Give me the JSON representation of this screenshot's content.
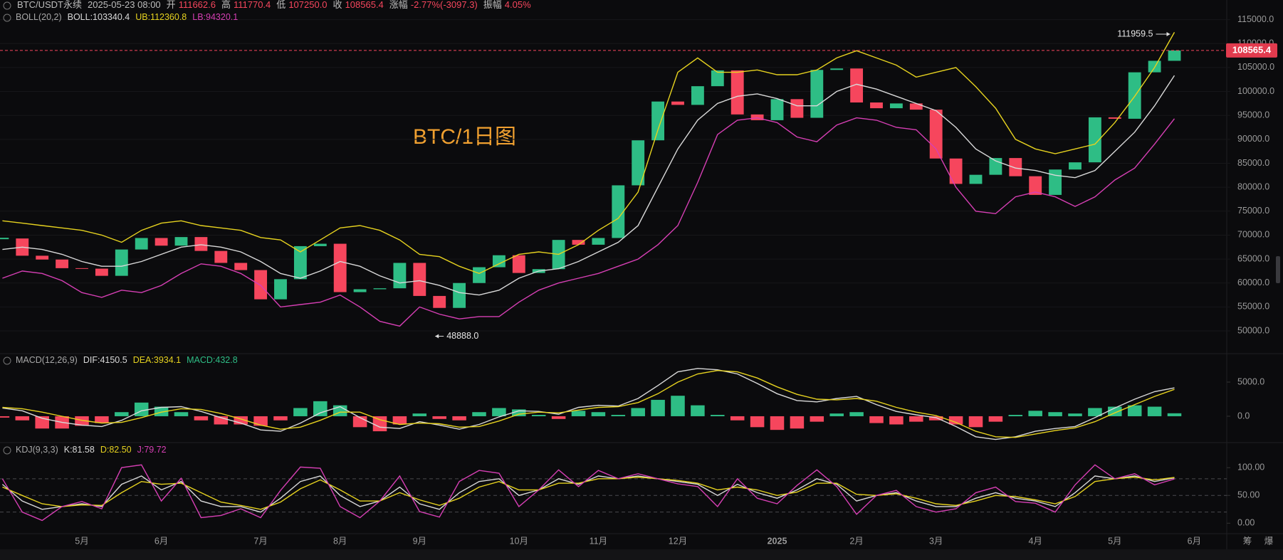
{
  "header": {
    "symbol": "BTC/USDT永续",
    "time": "2025-05-23 08:00",
    "value_color": "#f6465d",
    "fields": [
      {
        "label": "开",
        "value": "111662.6"
      },
      {
        "label": "高",
        "value": "111770.4"
      },
      {
        "label": "低",
        "value": "107250.0"
      },
      {
        "label": "收",
        "value": "108565.4"
      },
      {
        "label": "涨幅",
        "value": "-2.77%(-3097.3)"
      },
      {
        "label": "振幅",
        "value": "4.05%"
      }
    ]
  },
  "annotation": "BTC/1日图",
  "side_labels": [
    "筹",
    "爆"
  ],
  "chart_data": [
    {
      "type": "candlestick",
      "title": "BOLL(20,2)",
      "up_color": "#2ebd85",
      "down_color": "#f6465d",
      "grid": true,
      "categories": [
        null,
        null,
        null,
        null,
        "5月",
        null,
        null,
        null,
        "6月",
        null,
        null,
        null,
        null,
        "7月",
        null,
        null,
        null,
        "8月",
        null,
        null,
        null,
        "9月",
        null,
        null,
        null,
        null,
        "10月",
        null,
        null,
        null,
        "11月",
        null,
        null,
        null,
        "12月",
        null,
        null,
        null,
        null,
        "2025",
        null,
        null,
        null,
        "2月",
        null,
        null,
        null,
        "3月",
        null,
        null,
        null,
        null,
        "4月",
        null,
        null,
        null,
        "5月",
        null,
        null,
        null,
        "6月"
      ],
      "values": [
        69300,
        65700,
        64900,
        63100,
        63000,
        61500,
        67000,
        69400,
        67800,
        69600,
        66700,
        64200,
        62700,
        56600,
        60800,
        67700,
        68200,
        58100,
        58700,
        58900,
        64200,
        57300,
        54800,
        60000,
        63300,
        65800,
        62100,
        62900,
        69000,
        68000,
        69400,
        80400,
        89800,
        97900,
        97200,
        101100,
        104400,
        95200,
        94000,
        98400,
        94500,
        104500,
        104800,
        97700,
        96500,
        97500,
        96200,
        86000,
        80700,
        82600,
        86100,
        82300,
        78400,
        83700,
        85200,
        94600,
        94300,
        104000,
        106400,
        108565.4,
        null
      ],
      "max_marker": 111959.5,
      "min_marker": {
        "value": 48888,
        "label": "48888.0"
      },
      "series": [
        {
          "name": "BOLL:103340.4",
          "color": "#d9d9d9",
          "values": [
            67000,
            67500,
            67000,
            66000,
            64500,
            63500,
            63500,
            64500,
            66000,
            67500,
            68000,
            67500,
            66500,
            64500,
            62000,
            61000,
            62500,
            64500,
            63500,
            61500,
            60000,
            60500,
            59500,
            58000,
            57500,
            58500,
            61000,
            62500,
            63000,
            64500,
            66500,
            68500,
            72000,
            80000,
            88000,
            94000,
            97500,
            99000,
            99500,
            98500,
            97000,
            97000,
            100000,
            101500,
            100500,
            99000,
            97500,
            96000,
            92500,
            88000,
            85500,
            84000,
            83500,
            82500,
            82000,
            83500,
            87500,
            91500,
            97000,
            103340.4,
            null
          ]
        },
        {
          "name": "UB:112360.8",
          "color": "#e6d21f",
          "values": [
            73000,
            72500,
            72000,
            71500,
            71000,
            70000,
            68500,
            71000,
            72500,
            73000,
            72000,
            71500,
            71000,
            69500,
            69000,
            66500,
            69000,
            71500,
            72000,
            71000,
            69000,
            66000,
            65500,
            63500,
            62000,
            64000,
            66000,
            66500,
            66000,
            68000,
            71000,
            73500,
            79000,
            92000,
            104000,
            107000,
            104000,
            104000,
            104500,
            103500,
            103500,
            104500,
            107000,
            108500,
            107000,
            105500,
            103000,
            104000,
            105000,
            101000,
            96500,
            90000,
            88000,
            87000,
            88000,
            89000,
            93500,
            99000,
            105000,
            112360.8,
            null
          ]
        },
        {
          "name": "LB:94320.1",
          "color": "#d63fb4",
          "values": [
            61000,
            62500,
            62000,
            60500,
            58000,
            57000,
            58500,
            58000,
            59500,
            62000,
            64000,
            63500,
            62000,
            59500,
            55000,
            55500,
            56000,
            57500,
            55000,
            52000,
            51000,
            55000,
            53500,
            52500,
            53000,
            53000,
            56000,
            58500,
            60000,
            61000,
            62000,
            63500,
            65000,
            68000,
            72000,
            81000,
            91000,
            94000,
            94500,
            93500,
            90500,
            89500,
            93000,
            94500,
            94000,
            92500,
            92000,
            88000,
            80000,
            75000,
            74500,
            78000,
            79000,
            78000,
            76000,
            78000,
            81500,
            84000,
            89000,
            94320.1,
            null
          ]
        }
      ],
      "ylim": [
        45400,
        119100
      ],
      "yticks": [
        {
          "value": 50000,
          "label": "50000.0"
        },
        {
          "value": 55000,
          "label": "55000.0"
        },
        {
          "value": 60000,
          "label": "60000.0"
        },
        {
          "value": 65000,
          "label": "65000.0"
        },
        {
          "value": 70000,
          "label": "70000.0"
        },
        {
          "value": 75000,
          "label": "75000.0"
        },
        {
          "value": 80000,
          "label": "80000.0"
        },
        {
          "value": 85000,
          "label": "85000.0"
        },
        {
          "value": 90000,
          "label": "90000.0"
        },
        {
          "value": 95000,
          "label": "95000.0"
        },
        {
          "value": 100000,
          "label": "100000.0"
        },
        {
          "value": 105000,
          "label": "105000.0"
        },
        {
          "value": 110000,
          "label": "110000.0"
        },
        {
          "value": 115000,
          "label": "115000.0"
        }
      ]
    },
    {
      "type": "macd",
      "title": "MACD(12,26,9)",
      "up_color": "#2ebd85",
      "down_color": "#f6465d",
      "series": [
        {
          "name": "DIF:4150.5",
          "color": "#d9d9d9",
          "values": [
            1200,
            800,
            -300,
            -900,
            -1300,
            -1500,
            -600,
            800,
            1300,
            1400,
            700,
            -200,
            -1000,
            -2000,
            -2200,
            -1000,
            500,
            1400,
            -200,
            -1600,
            -1800,
            -800,
            -1300,
            -1900,
            -1200,
            -100,
            800,
            700,
            300,
            1300,
            1600,
            1500,
            2600,
            4500,
            6500,
            7000,
            6800,
            6200,
            4800,
            3300,
            2300,
            2100,
            2600,
            2900,
            1700,
            700,
            200,
            -200,
            -1500,
            -3000,
            -3400,
            -3000,
            -2200,
            -1800,
            -1500,
            -200,
            1200,
            2500,
            3600,
            4150.5,
            null
          ]
        },
        {
          "name": "DEA:3934.1",
          "color": "#e6d21f",
          "values": [
            1300,
            1100,
            600,
            0,
            -600,
            -1000,
            -900,
            -200,
            600,
            1100,
            1000,
            400,
            -400,
            -1300,
            -1900,
            -1600,
            -600,
            600,
            600,
            -500,
            -1200,
            -1000,
            -1100,
            -1600,
            -1500,
            -700,
            300,
            600,
            500,
            900,
            1300,
            1400,
            2000,
            3300,
            5000,
            6200,
            6700,
            6500,
            5600,
            4300,
            3200,
            2500,
            2400,
            2600,
            2200,
            1300,
            600,
            100,
            -900,
            -2200,
            -3000,
            -3100,
            -2600,
            -2100,
            -1700,
            -800,
            500,
            1700,
            2900,
            3934.1,
            null
          ]
        },
        {
          "name": "MACD:432.8",
          "color": "#2ebd85",
          "style": "bar",
          "values": [
            -200,
            -600,
            -1800,
            -1800,
            -1400,
            -1000,
            600,
            2000,
            1400,
            600,
            -600,
            -1200,
            -1200,
            -1400,
            -600,
            1200,
            2200,
            1600,
            -1600,
            -2200,
            -1200,
            400,
            -400,
            -600,
            600,
            1200,
            1000,
            200,
            -400,
            800,
            600,
            200,
            1200,
            2400,
            3000,
            1600,
            200,
            -600,
            -1600,
            -2000,
            -1800,
            -800,
            400,
            600,
            -1000,
            -1200,
            -800,
            -600,
            -1200,
            -1600,
            -800,
            200,
            800,
            600,
            400,
            1200,
            1400,
            1600,
            1400,
            432.8,
            null
          ]
        }
      ],
      "ylim": [
        -3650,
        9060
      ],
      "yticks": [
        {
          "value": 0,
          "label": "0.0"
        },
        {
          "value": 5000,
          "label": "5000.0"
        }
      ]
    },
    {
      "type": "line",
      "title": "KDJ(9,3,3)",
      "ref_lines": [
        20,
        50,
        80
      ],
      "series": [
        {
          "name": "K:81.58",
          "color": "#d9d9d9",
          "values": [
            70,
            40,
            25,
            30,
            35,
            30,
            70,
            85,
            60,
            75,
            40,
            30,
            30,
            20,
            45,
            75,
            85,
            50,
            30,
            40,
            65,
            35,
            25,
            55,
            75,
            80,
            50,
            60,
            80,
            70,
            85,
            80,
            85,
            80,
            75,
            70,
            50,
            70,
            55,
            45,
            60,
            80,
            70,
            40,
            50,
            55,
            40,
            30,
            30,
            45,
            55,
            45,
            40,
            30,
            55,
            85,
            80,
            85,
            75,
            81.58,
            null
          ]
        },
        {
          "name": "D:82.50",
          "color": "#e6d21f",
          "values": [
            65,
            50,
            35,
            30,
            33,
            32,
            55,
            75,
            70,
            72,
            55,
            38,
            32,
            25,
            38,
            62,
            78,
            60,
            40,
            40,
            55,
            42,
            32,
            45,
            65,
            75,
            60,
            60,
            72,
            72,
            80,
            80,
            83,
            80,
            77,
            72,
            60,
            65,
            60,
            50,
            56,
            72,
            72,
            52,
            50,
            53,
            45,
            35,
            32,
            40,
            50,
            48,
            42,
            35,
            48,
            75,
            80,
            83,
            78,
            82.5,
            null
          ]
        },
        {
          "name": "J:79.72",
          "color": "#d63fb4",
          "values": [
            80,
            20,
            5,
            30,
            39,
            26,
            100,
            105,
            40,
            81,
            10,
            14,
            26,
            10,
            59,
            101,
            99,
            30,
            10,
            40,
            85,
            21,
            11,
            75,
            95,
            90,
            30,
            60,
            96,
            66,
            95,
            80,
            89,
            80,
            71,
            66,
            30,
            80,
            45,
            35,
            68,
            96,
            66,
            16,
            50,
            59,
            30,
            20,
            26,
            55,
            65,
            39,
            36,
            20,
            69,
            105,
            80,
            89,
            69,
            79.72,
            null
          ]
        }
      ],
      "ylim": [
        -15,
        140
      ],
      "yticks": [
        {
          "value": 0,
          "label": "0.00"
        },
        {
          "value": 50,
          "label": "50.00"
        },
        {
          "value": 100,
          "label": "100.00"
        }
      ]
    }
  ]
}
